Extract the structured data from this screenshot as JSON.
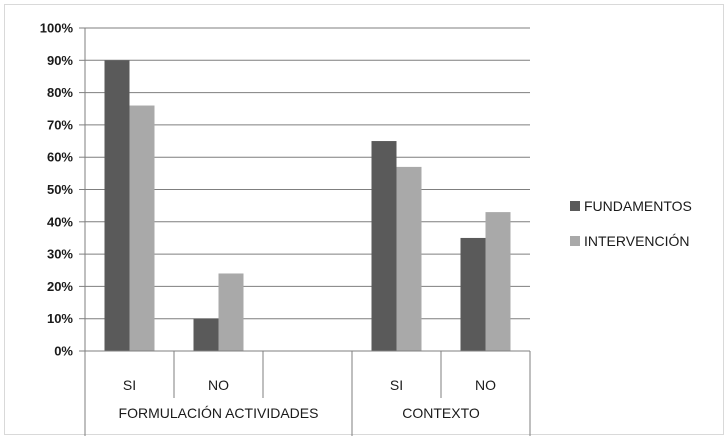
{
  "chart_data": {
    "type": "bar",
    "title": "",
    "xlabel": "",
    "ylabel": "",
    "ylim": [
      0,
      100
    ],
    "y_ticks": [
      "0%",
      "10%",
      "20%",
      "30%",
      "40%",
      "50%",
      "60%",
      "70%",
      "80%",
      "90%",
      "100%"
    ],
    "grid": true,
    "legend_position": "right",
    "slots": [
      {
        "category": "SI",
        "group": "FORMULACIÓN ACTIVIDADES"
      },
      {
        "category": "NO",
        "group": "FORMULACIÓN ACTIVIDADES"
      },
      {
        "category": "",
        "group": "FORMULACIÓN ACTIVIDADES"
      },
      {
        "category": "SI",
        "group": "CONTEXTO"
      },
      {
        "category": "NO",
        "group": "CONTEXTO"
      }
    ],
    "groups": [
      "FORMULACIÓN ACTIVIDADES",
      "CONTEXTO"
    ],
    "series": [
      {
        "name": "FUNDAMENTOS",
        "color": "#5a5a5a",
        "values": [
          90,
          10,
          null,
          65,
          35
        ]
      },
      {
        "name": "INTERVENCIÓN",
        "color": "#a9a9a9",
        "values": [
          76,
          24,
          null,
          57,
          43
        ]
      }
    ]
  }
}
